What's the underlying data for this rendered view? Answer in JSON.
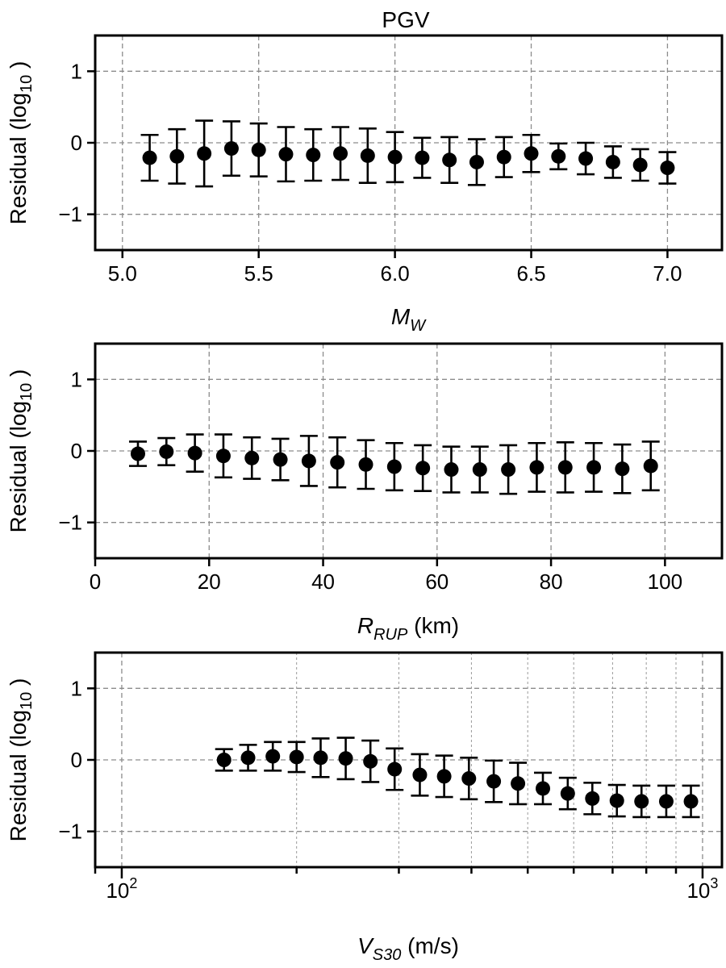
{
  "chart_data": [
    {
      "type": "scatter",
      "title": "PGV",
      "xlabel_main": "M",
      "xlabel_sub": "W",
      "xlabel_suffix": "",
      "ylabel": "Residual (log",
      "ylabel_sub": "10",
      "ylabel_suffix": " )",
      "xscale": "linear",
      "xlim": [
        4.9,
        7.2
      ],
      "ylim": [
        -1.5,
        1.5
      ],
      "xticks": [
        5.0,
        5.5,
        6.0,
        6.5,
        7.0
      ],
      "xtick_labels": [
        "5.0",
        "5.5",
        "6.0",
        "6.5",
        "7.0"
      ],
      "yticks": [
        1,
        0,
        -1
      ],
      "ytick_labels": [
        "1",
        "0",
        "−1"
      ],
      "grid": true,
      "x": [
        5.1,
        5.2,
        5.3,
        5.4,
        5.5,
        5.6,
        5.7,
        5.8,
        5.9,
        6.0,
        6.1,
        6.2,
        6.3,
        6.4,
        6.5,
        6.6,
        6.7,
        6.8,
        6.9,
        7.0
      ],
      "y": [
        -0.21,
        -0.19,
        -0.15,
        -0.08,
        -0.1,
        -0.16,
        -0.17,
        -0.15,
        -0.18,
        -0.2,
        -0.21,
        -0.24,
        -0.27,
        -0.2,
        -0.15,
        -0.19,
        -0.22,
        -0.27,
        -0.31,
        -0.35
      ],
      "err": [
        0.32,
        0.38,
        0.46,
        0.38,
        0.37,
        0.38,
        0.36,
        0.37,
        0.38,
        0.35,
        0.28,
        0.32,
        0.32,
        0.28,
        0.26,
        0.18,
        0.22,
        0.22,
        0.22,
        0.22
      ]
    },
    {
      "type": "scatter",
      "title": "",
      "xlabel_main": "R",
      "xlabel_sub": "RUP",
      "xlabel_suffix": " (km)",
      "ylabel": "Residual (log",
      "ylabel_sub": "10",
      "ylabel_suffix": " )",
      "xscale": "linear",
      "xlim": [
        0,
        110
      ],
      "ylim": [
        -1.5,
        1.5
      ],
      "xticks": [
        0,
        20,
        40,
        60,
        80,
        100
      ],
      "xtick_labels": [
        "0",
        "20",
        "40",
        "60",
        "80",
        "100"
      ],
      "yticks": [
        1,
        0,
        -1
      ],
      "ytick_labels": [
        "1",
        "0",
        "−1"
      ],
      "grid": true,
      "x": [
        7.5,
        12.5,
        17.5,
        22.5,
        27.5,
        32.5,
        37.5,
        42.5,
        47.5,
        52.5,
        57.5,
        62.5,
        67.5,
        72.5,
        77.5,
        82.5,
        87.5,
        92.5,
        97.5
      ],
      "y": [
        -0.04,
        -0.01,
        -0.03,
        -0.07,
        -0.1,
        -0.12,
        -0.14,
        -0.16,
        -0.19,
        -0.22,
        -0.24,
        -0.26,
        -0.26,
        -0.26,
        -0.23,
        -0.23,
        -0.23,
        -0.25,
        -0.21
      ],
      "err": [
        0.17,
        0.19,
        0.26,
        0.3,
        0.29,
        0.29,
        0.35,
        0.35,
        0.34,
        0.33,
        0.32,
        0.32,
        0.32,
        0.34,
        0.34,
        0.35,
        0.34,
        0.34,
        0.34
      ]
    },
    {
      "type": "scatter",
      "title": "",
      "xlabel_main": "V",
      "xlabel_sub": "S30",
      "xlabel_suffix": " (m/s)",
      "ylabel": "Residual (log",
      "ylabel_sub": "10",
      "ylabel_suffix": " )",
      "xscale": "log",
      "xlim": [
        90,
        1080
      ],
      "ylim": [
        -1.5,
        1.5
      ],
      "xticks": [
        100,
        1000
      ],
      "xtick_labels": [
        "10",
        "10"
      ],
      "xtick_exponents": [
        "2",
        "3"
      ],
      "minor_xticks": [
        200,
        300,
        400,
        500,
        600,
        700,
        800,
        900
      ],
      "yticks": [
        1,
        0,
        -1
      ],
      "ytick_labels": [
        "1",
        "0",
        "−1"
      ],
      "grid": true,
      "x": [
        150,
        165,
        182,
        200,
        220,
        243,
        268,
        295,
        326,
        359,
        396,
        437,
        481,
        531,
        586,
        646,
        712,
        785,
        866,
        955
      ],
      "y": [
        0.0,
        0.03,
        0.05,
        0.04,
        0.03,
        0.02,
        -0.02,
        -0.13,
        -0.21,
        -0.23,
        -0.26,
        -0.3,
        -0.33,
        -0.4,
        -0.47,
        -0.54,
        -0.57,
        -0.58,
        -0.58,
        -0.58
      ],
      "err": [
        0.15,
        0.18,
        0.2,
        0.21,
        0.27,
        0.29,
        0.29,
        0.29,
        0.29,
        0.29,
        0.29,
        0.29,
        0.29,
        0.22,
        0.22,
        0.22,
        0.22,
        0.22,
        0.22,
        0.22
      ]
    }
  ]
}
